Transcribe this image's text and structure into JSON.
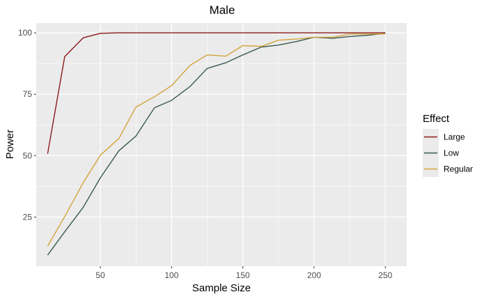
{
  "chart_data": {
    "type": "line",
    "title": "Male",
    "xlabel": "Sample Size",
    "ylabel": "Power",
    "xlim": [
      5,
      265
    ],
    "ylim": [
      5,
      104
    ],
    "x_ticks": [
      50,
      100,
      150,
      200,
      250
    ],
    "y_ticks": [
      25,
      50,
      75,
      100
    ],
    "grid": true,
    "legend": {
      "title": "Effect",
      "position": "right"
    },
    "x": [
      13,
      25,
      38,
      50,
      63,
      75,
      88,
      100,
      113,
      125,
      138,
      150,
      163,
      175,
      188,
      200,
      213,
      225,
      238,
      250
    ],
    "series": [
      {
        "name": "Large",
        "color": "#8b1a1a",
        "values": [
          50.8,
          90.3,
          98.0,
          99.8,
          100,
          100,
          100,
          100,
          100,
          100,
          100,
          100,
          100,
          100,
          100,
          100,
          100,
          100,
          100,
          100
        ]
      },
      {
        "name": "Low",
        "color": "#3a5a4e",
        "values": [
          9.5,
          19.0,
          29.0,
          41.0,
          52.0,
          58.0,
          69.5,
          72.5,
          78.2,
          85.5,
          87.8,
          91.0,
          94.2,
          95.0,
          96.5,
          98.2,
          97.8,
          98.5,
          99.0,
          99.8
        ]
      },
      {
        "name": "Regular",
        "color": "#d4a33b",
        "values": [
          13.2,
          25.2,
          39.0,
          50.2,
          57.0,
          69.8,
          74.0,
          78.5,
          86.8,
          91.0,
          90.5,
          94.8,
          94.5,
          97.0,
          97.5,
          98.2,
          98.2,
          99.5,
          99.5,
          99.6
        ]
      }
    ]
  }
}
